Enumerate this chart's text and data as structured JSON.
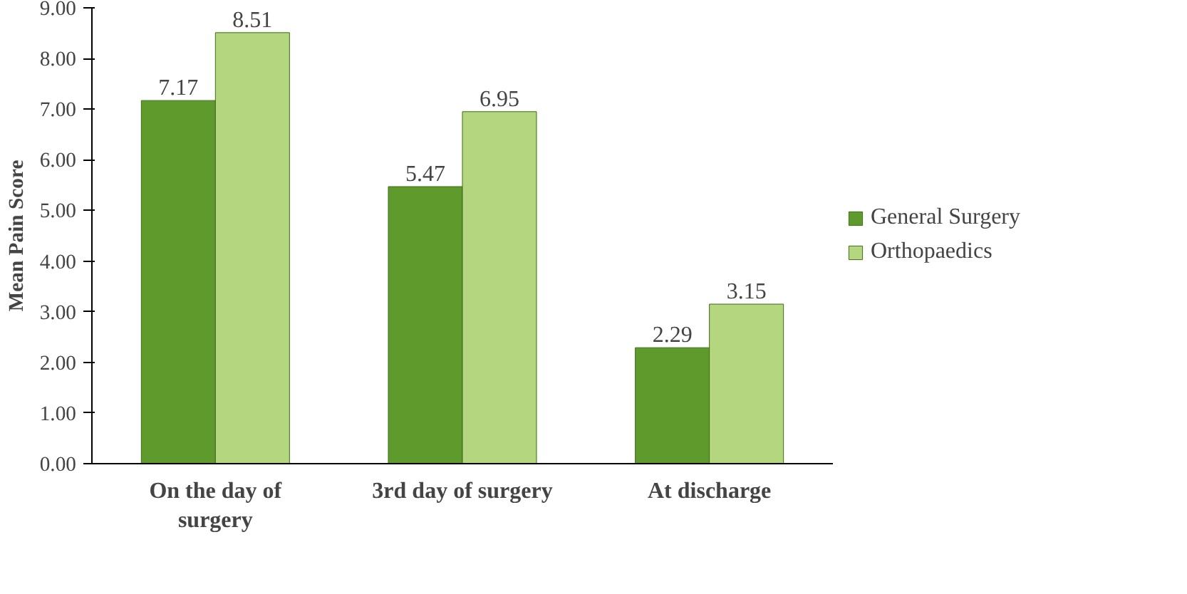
{
  "chart_data": {
    "type": "bar",
    "ylabel": "Mean Pain Score",
    "categories": [
      "On the day of surgery",
      "3rd day of surgery",
      "At discharge"
    ],
    "series": [
      {
        "name": "General Surgery",
        "color": "#5e9a2c",
        "values": [
          7.17,
          5.47,
          2.29
        ]
      },
      {
        "name": "Orthopaedics",
        "color": "#b3d67f",
        "values": [
          8.51,
          6.95,
          3.15
        ]
      }
    ],
    "ylim": [
      0,
      9
    ],
    "yticks": [
      {
        "value": 0,
        "label": "0.00"
      },
      {
        "value": 1,
        "label": "1.00"
      },
      {
        "value": 2,
        "label": "2.00"
      },
      {
        "value": 3,
        "label": "3.00"
      },
      {
        "value": 4,
        "label": "4.00"
      },
      {
        "value": 5,
        "label": "5.00"
      },
      {
        "value": 6,
        "label": "6.00"
      },
      {
        "value": 7,
        "label": "7.00"
      },
      {
        "value": 8,
        "label": "8.00"
      },
      {
        "value": 9,
        "label": "9.00"
      }
    ],
    "data_labels": true,
    "grid": false,
    "legend": "right"
  }
}
